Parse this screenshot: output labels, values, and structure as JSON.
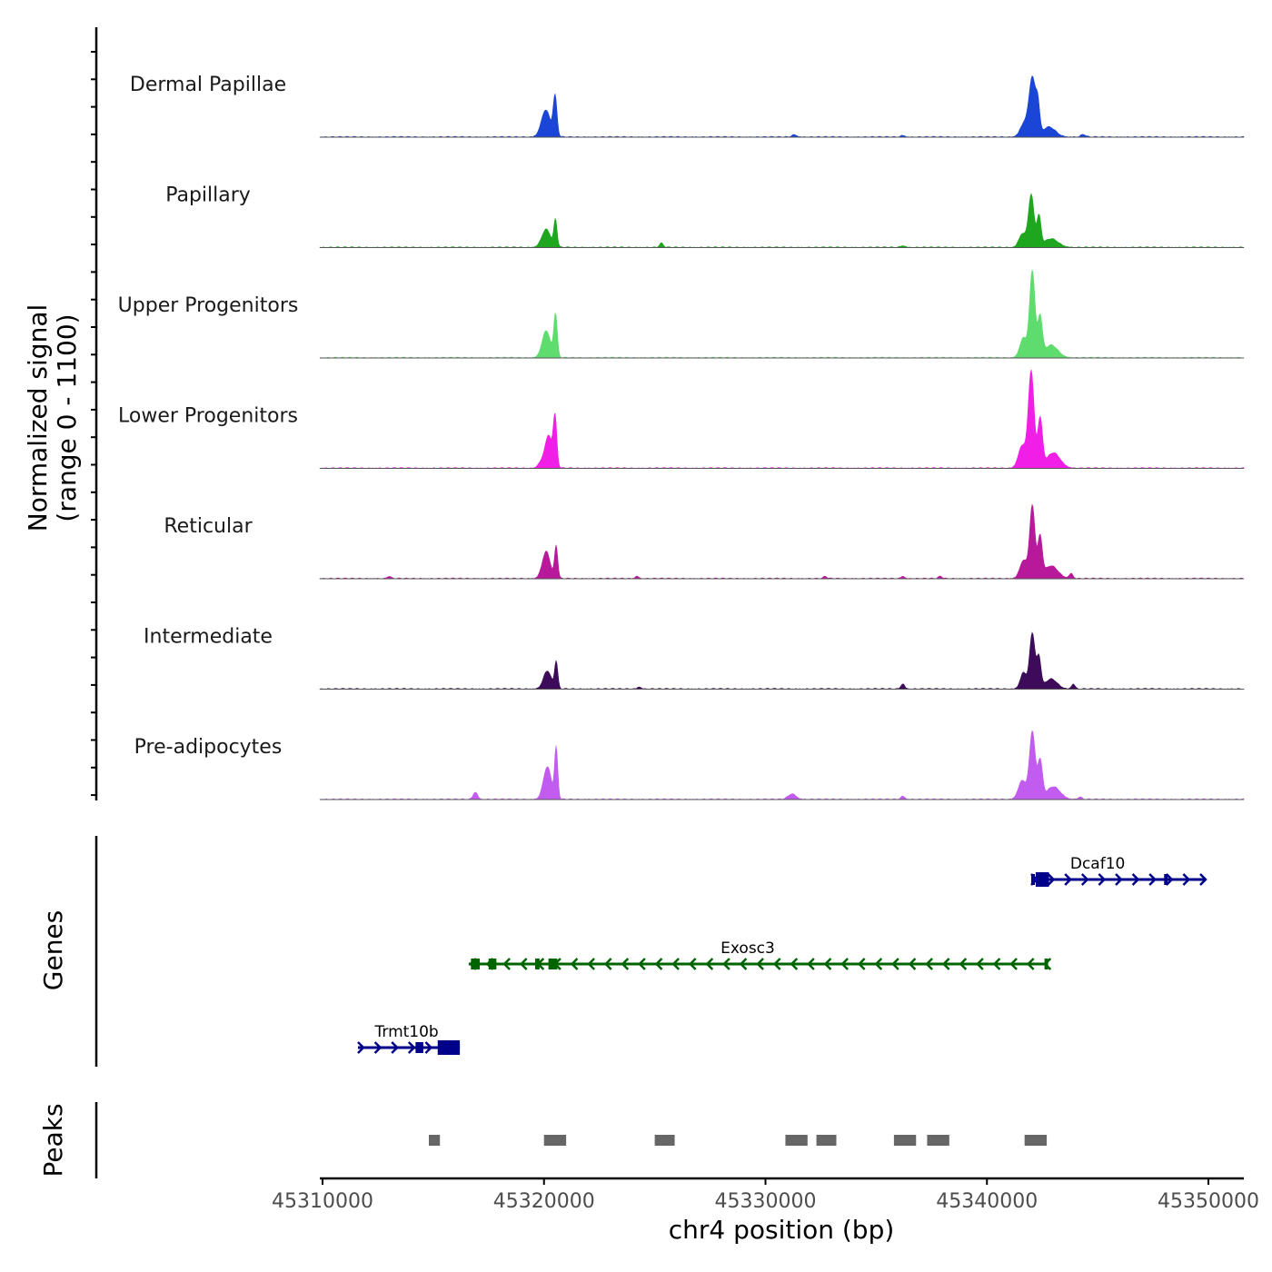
{
  "chart_data": {
    "type": "area",
    "title": "",
    "chrom": "chr4",
    "xlabel": "chr4 position (bp)",
    "xlim": [
      45310000,
      45351000
    ],
    "x_ticks": [
      45310000,
      45320000,
      45330000,
      45340000,
      45350000
    ],
    "x_tick_labels": [
      "45310000",
      "45320000",
      "45330000",
      "45340000",
      "45350000"
    ],
    "ylabel_line1": "Normalized signal",
    "ylabel_line2": "(range 0 - 1100)",
    "ylim": [
      0,
      1100
    ],
    "tracks": [
      {
        "name": "Dermal Papillae",
        "color": "#1a45d6",
        "peaks": [
          {
            "pos": 45320080,
            "width": 280,
            "height": 300
          },
          {
            "pos": 45320500,
            "width": 120,
            "height": 440
          },
          {
            "pos": 45342050,
            "width": 200,
            "height": 640
          },
          {
            "pos": 45342300,
            "width": 120,
            "height": 320
          },
          {
            "pos": 45341700,
            "width": 260,
            "height": 160
          },
          {
            "pos": 45342800,
            "width": 420,
            "height": 110
          },
          {
            "pos": 45344350,
            "width": 150,
            "height": 28
          },
          {
            "pos": 45331300,
            "width": 150,
            "height": 25
          },
          {
            "pos": 45336200,
            "width": 120,
            "height": 18
          }
        ]
      },
      {
        "name": "Papillary",
        "color": "#1ea61e",
        "peaks": [
          {
            "pos": 45320100,
            "width": 280,
            "height": 200
          },
          {
            "pos": 45320520,
            "width": 100,
            "height": 300
          },
          {
            "pos": 45342000,
            "width": 180,
            "height": 580
          },
          {
            "pos": 45342350,
            "width": 130,
            "height": 330
          },
          {
            "pos": 45341600,
            "width": 220,
            "height": 150
          },
          {
            "pos": 45342900,
            "width": 450,
            "height": 95
          },
          {
            "pos": 45325300,
            "width": 120,
            "height": 45
          },
          {
            "pos": 45336200,
            "width": 150,
            "height": 18
          }
        ]
      },
      {
        "name": "Upper Progenitors",
        "color": "#5fdc6e",
        "peaks": [
          {
            "pos": 45320100,
            "width": 260,
            "height": 300
          },
          {
            "pos": 45320520,
            "width": 110,
            "height": 480
          },
          {
            "pos": 45342050,
            "width": 170,
            "height": 960
          },
          {
            "pos": 45342400,
            "width": 140,
            "height": 440
          },
          {
            "pos": 45341650,
            "width": 230,
            "height": 220
          },
          {
            "pos": 45342900,
            "width": 430,
            "height": 140
          }
        ]
      },
      {
        "name": "Lower Progenitors",
        "color": "#f01ee6",
        "peaks": [
          {
            "pos": 45320200,
            "width": 250,
            "height": 360
          },
          {
            "pos": 45320500,
            "width": 110,
            "height": 520
          },
          {
            "pos": 45342000,
            "width": 180,
            "height": 1070
          },
          {
            "pos": 45342400,
            "width": 150,
            "height": 540
          },
          {
            "pos": 45341600,
            "width": 250,
            "height": 250
          },
          {
            "pos": 45343000,
            "width": 430,
            "height": 170
          },
          {
            "pos": 45319800,
            "width": 150,
            "height": 40
          }
        ]
      },
      {
        "name": "Reticular",
        "color": "#b8199b",
        "peaks": [
          {
            "pos": 45320100,
            "width": 250,
            "height": 300
          },
          {
            "pos": 45320550,
            "width": 100,
            "height": 360
          },
          {
            "pos": 45342050,
            "width": 170,
            "height": 800
          },
          {
            "pos": 45342400,
            "width": 140,
            "height": 440
          },
          {
            "pos": 45341650,
            "width": 230,
            "height": 200
          },
          {
            "pos": 45342900,
            "width": 430,
            "height": 140
          },
          {
            "pos": 45343800,
            "width": 120,
            "height": 55
          },
          {
            "pos": 45313000,
            "width": 110,
            "height": 25
          },
          {
            "pos": 45324200,
            "width": 110,
            "height": 25
          },
          {
            "pos": 45332700,
            "width": 110,
            "height": 22
          },
          {
            "pos": 45336200,
            "width": 110,
            "height": 25
          },
          {
            "pos": 45337900,
            "width": 110,
            "height": 25
          }
        ]
      },
      {
        "name": "Intermediate",
        "color": "#3d0b5a",
        "peaks": [
          {
            "pos": 45320150,
            "width": 250,
            "height": 200
          },
          {
            "pos": 45320550,
            "width": 100,
            "height": 300
          },
          {
            "pos": 45342050,
            "width": 170,
            "height": 620
          },
          {
            "pos": 45342350,
            "width": 130,
            "height": 340
          },
          {
            "pos": 45341650,
            "width": 200,
            "height": 180
          },
          {
            "pos": 45342900,
            "width": 380,
            "height": 110
          },
          {
            "pos": 45343900,
            "width": 110,
            "height": 55
          },
          {
            "pos": 45336200,
            "width": 120,
            "height": 55
          },
          {
            "pos": 45324300,
            "width": 110,
            "height": 22
          }
        ]
      },
      {
        "name": "Pre-adipocytes",
        "color": "#c25cf0",
        "peaks": [
          {
            "pos": 45320150,
            "width": 250,
            "height": 360
          },
          {
            "pos": 45320550,
            "width": 100,
            "height": 560
          },
          {
            "pos": 45342050,
            "width": 180,
            "height": 750
          },
          {
            "pos": 45342400,
            "width": 150,
            "height": 420
          },
          {
            "pos": 45341600,
            "width": 250,
            "height": 210
          },
          {
            "pos": 45343000,
            "width": 430,
            "height": 140
          },
          {
            "pos": 45316900,
            "width": 140,
            "height": 80
          },
          {
            "pos": 45331200,
            "width": 250,
            "height": 60
          },
          {
            "pos": 45336200,
            "width": 120,
            "height": 35
          },
          {
            "pos": 45344200,
            "width": 120,
            "height": 25
          }
        ]
      }
    ],
    "genes_title": "Genes",
    "genes": [
      {
        "name": "Dcaf10",
        "strand": "+",
        "color": "#00008b",
        "start": 45342000,
        "end": 45349800,
        "row": 0,
        "label_pos": 45345000,
        "exons": [
          [
            45342000,
            45342150
          ],
          [
            45342200,
            45342800
          ],
          [
            45348000,
            45348150
          ]
        ]
      },
      {
        "name": "Exosc3",
        "strand": "-",
        "color": "#006400",
        "start": 45316600,
        "end": 45342700,
        "row": 1,
        "label_pos": 45329200,
        "exons": [
          [
            45316700,
            45317100
          ],
          [
            45317500,
            45317850
          ],
          [
            45319600,
            45319800
          ],
          [
            45320200,
            45320600
          ],
          [
            45342600,
            45342700
          ]
        ]
      },
      {
        "name": "Trmt10b",
        "strand": "+",
        "color": "#00008b",
        "start": 45311600,
        "end": 45316200,
        "row": 2,
        "label_pos": 45313800,
        "exons": [
          [
            45314200,
            45314550
          ],
          [
            45315200,
            45316200
          ]
        ]
      }
    ],
    "peaks_title": "Peaks",
    "peak_regions": [
      [
        45314800,
        45315300
      ],
      [
        45320000,
        45321000
      ],
      [
        45325000,
        45325900
      ],
      [
        45330900,
        45331900
      ],
      [
        45332300,
        45333200
      ],
      [
        45335800,
        45336800
      ],
      [
        45337300,
        45338300
      ],
      [
        45341700,
        45342700
      ]
    ],
    "peak_color": "#666666"
  }
}
